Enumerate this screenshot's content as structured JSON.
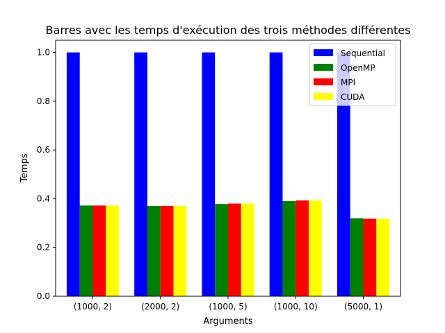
{
  "chart_data": {
    "type": "bar",
    "title": "Barres avec les temps d'exécution des trois méthodes différentes",
    "xlabel": "Arguments",
    "ylabel": "Temps",
    "ylim": [
      0,
      1.05
    ],
    "yticks": [
      0.0,
      0.2,
      0.4,
      0.6,
      0.8,
      1.0
    ],
    "ytick_labels": [
      "0.0",
      "0.2",
      "0.4",
      "0.6",
      "0.8",
      "1.0"
    ],
    "categories": [
      "(1000, 2)",
      "(2000, 2)",
      "(1000, 5)",
      "(1000, 10)",
      "(5000, 1)"
    ],
    "series": [
      {
        "name": "Sequential",
        "color": "#0000ff",
        "values": [
          1.0,
          1.0,
          1.0,
          1.0,
          1.0
        ]
      },
      {
        "name": "OpenMP",
        "color": "#008000",
        "values": [
          0.372,
          0.37,
          0.378,
          0.39,
          0.32
        ]
      },
      {
        "name": "MPI",
        "color": "#ff0000",
        "values": [
          0.372,
          0.37,
          0.38,
          0.393,
          0.318
        ]
      },
      {
        "name": "CUDA",
        "color": "#ffff00",
        "values": [
          0.372,
          0.37,
          0.38,
          0.393,
          0.318
        ]
      }
    ],
    "legend_position": "upper-right",
    "grid": false
  }
}
